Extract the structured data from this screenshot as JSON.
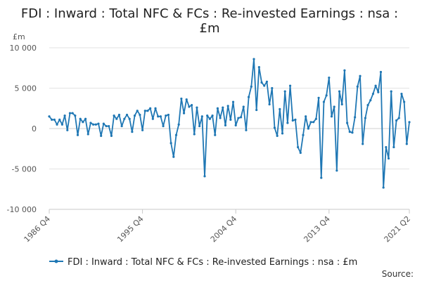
{
  "chart_data": {
    "type": "line",
    "title_lines": [
      "FDI : Inward : Total NFC & FCs : Re-invested Earnings : nsa :",
      "£m"
    ],
    "unit_label": "£m",
    "ylim": [
      -10000,
      10000
    ],
    "yticks": [
      10000,
      5000,
      0,
      -5000,
      -10000
    ],
    "ytick_labels": [
      "10 000",
      "5 000",
      "0",
      "-5 000",
      "-10 000"
    ],
    "xticks": [
      "1986 Q4",
      "1995 Q4",
      "2004 Q4",
      "2013 Q4",
      "2021 Q2"
    ],
    "grid": true,
    "legend_position": "bottom",
    "source_label": "Source:",
    "color": "#1f77b4",
    "series": [
      {
        "name": "FDI : Inward : Total NFC & FCs : Re-invested Earnings : nsa : £m",
        "start": "1986 Q4",
        "end": "2021 Q2",
        "values": [
          1500,
          1100,
          1100,
          500,
          1100,
          500,
          1600,
          -200,
          1900,
          1900,
          1600,
          -800,
          1200,
          800,
          1200,
          -700,
          700,
          500,
          500,
          600,
          -900,
          600,
          300,
          300,
          -900,
          1600,
          1200,
          1700,
          300,
          1200,
          1700,
          1200,
          -400,
          1600,
          2200,
          1700,
          -200,
          2200,
          2200,
          2500,
          1200,
          2500,
          1500,
          1500,
          300,
          1600,
          1700,
          -1800,
          -3500,
          -800,
          500,
          3700,
          1900,
          3600,
          2700,
          2900,
          -700,
          2600,
          300,
          1500,
          -5900,
          1600,
          1200,
          1600,
          -800,
          2500,
          1300,
          2600,
          400,
          2800,
          1100,
          3300,
          400,
          1300,
          1400,
          2700,
          -200,
          3900,
          5200,
          8600,
          2300,
          7600,
          5700,
          5300,
          5800,
          3000,
          5000,
          100,
          -900,
          2400,
          -600,
          4600,
          700,
          5300,
          1000,
          1100,
          -2300,
          -3000,
          -800,
          1500,
          0,
          800,
          800,
          1200,
          3800,
          -6100,
          3300,
          4100,
          6300,
          1500,
          2700,
          -5200,
          4600,
          3000,
          7200,
          700,
          -400,
          -500,
          1400,
          5200,
          6500,
          -1900,
          1300,
          2900,
          3500,
          4300,
          5300,
          4500,
          7000,
          -7300,
          -2300,
          -3700,
          4600,
          -2300,
          1000,
          1300,
          4300,
          3300,
          -1900,
          800
        ]
      }
    ]
  }
}
